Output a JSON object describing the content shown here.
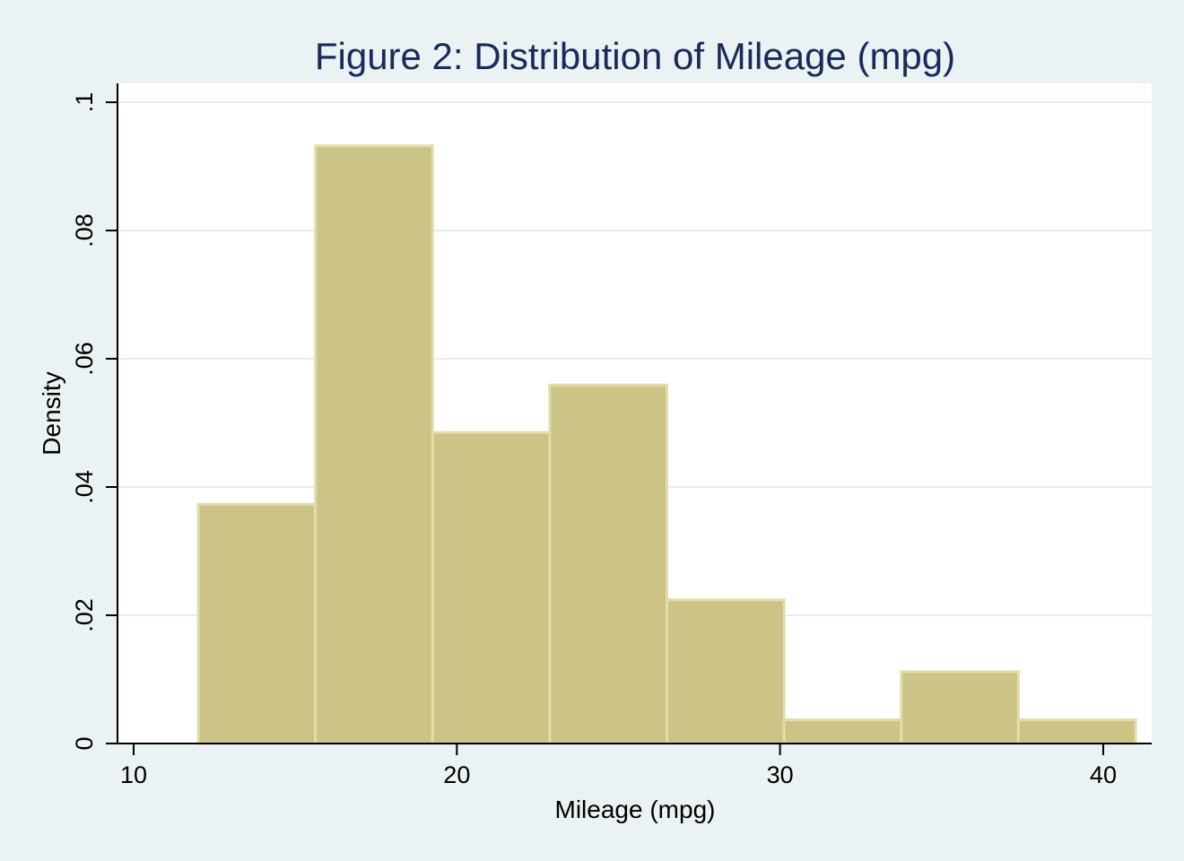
{
  "chart_data": {
    "type": "bar",
    "title": "Figure 2: Distribution of Mileage (mpg)",
    "xlabel": "Mileage (mpg)",
    "ylabel": "Density",
    "xlim": [
      9.5,
      41.5
    ],
    "ylim": [
      0,
      0.1
    ],
    "x_ticks": [
      10,
      20,
      30,
      40
    ],
    "x_tick_labels": [
      "10",
      "20",
      "30",
      "40"
    ],
    "y_ticks": [
      0,
      0.02,
      0.04,
      0.06,
      0.08,
      0.1
    ],
    "y_tick_labels": [
      "0",
      ".02",
      ".04",
      ".06",
      ".08",
      ".1"
    ],
    "grid": true,
    "bins": [
      {
        "x0": 12.0,
        "x1": 15.625,
        "value": 0.0373
      },
      {
        "x0": 15.625,
        "x1": 19.25,
        "value": 0.0932
      },
      {
        "x0": 19.25,
        "x1": 22.875,
        "value": 0.0485
      },
      {
        "x0": 22.875,
        "x1": 26.5,
        "value": 0.0559
      },
      {
        "x0": 26.5,
        "x1": 30.125,
        "value": 0.0224
      },
      {
        "x0": 30.125,
        "x1": 33.75,
        "value": 0.0037
      },
      {
        "x0": 33.75,
        "x1": 37.375,
        "value": 0.0112
      },
      {
        "x0": 37.375,
        "x1": 41.0,
        "value": 0.0037
      }
    ],
    "colors": {
      "bar_fill": "#ccc386",
      "bar_stroke": "#e3dcab",
      "grid": "#e6eef0",
      "title": "#1a2a5a",
      "plot_bg": "#ffffff",
      "page_bg": "#eaf2f3"
    }
  }
}
